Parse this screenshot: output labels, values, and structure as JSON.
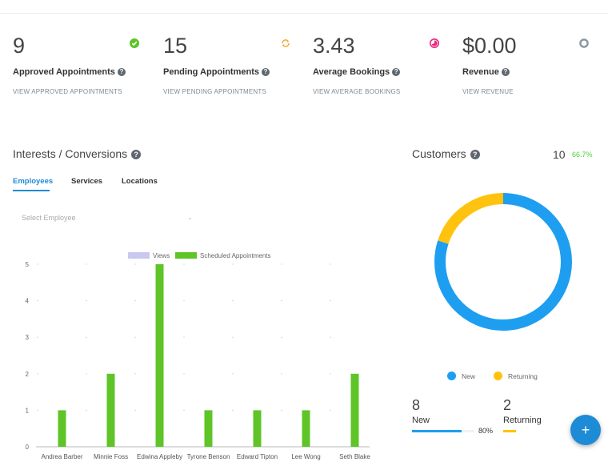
{
  "stats": [
    {
      "value": "9",
      "label": "Approved Appointments",
      "link": "VIEW APPROVED APPOINTMENTS",
      "icon": "check-circle-icon"
    },
    {
      "value": "15",
      "label": "Pending Appointments",
      "link": "VIEW PENDING APPOINTMENTS",
      "icon": "sync-icon"
    },
    {
      "value": "3.43",
      "label": "Average Bookings",
      "link": "VIEW AVERAGE BOOKINGS",
      "icon": "pie-icon"
    },
    {
      "value": "$0.00",
      "label": "Revenue",
      "link": "VIEW REVENUE",
      "icon": "ring-icon"
    }
  ],
  "colors": {
    "green": "#5ec427",
    "blue": "#1e8bd6",
    "donut_blue": "#1e9ef0",
    "donut_yellow": "#ffc30f",
    "views": "#c9c8f0",
    "orange": "#f5a623",
    "pink": "#e9277f",
    "gray": "#8a96a0"
  },
  "interests": {
    "title": "Interests / Conversions",
    "tabs": [
      "Employees",
      "Services",
      "Locations"
    ],
    "select_placeholder": "Select Employee"
  },
  "chart_data": {
    "type": "bar",
    "categories": [
      "Andrea  Barber",
      "Minnie Foss",
      "Edwina Appleby",
      "Tyrone  Benson",
      "Edward Tipton",
      "Lee Wong",
      "Seth Blake"
    ],
    "series": [
      {
        "name": "Views",
        "values": [
          0,
          0,
          0,
          0,
          0,
          0,
          0
        ]
      },
      {
        "name": "Scheduled Appointments",
        "values": [
          1,
          2,
          5,
          1,
          1,
          1,
          2
        ]
      }
    ],
    "yticks": [
      "0",
      "1",
      "2",
      "3",
      "4",
      "5"
    ],
    "ylim": [
      0,
      5
    ],
    "legend": "top"
  },
  "customers": {
    "title": "Customers",
    "count": "10",
    "pct": "66.7%",
    "donut": [
      {
        "name": "New",
        "value": 8
      },
      {
        "name": "Returning",
        "value": 2
      }
    ],
    "legend": [
      "New",
      "Returning"
    ],
    "new_count": "8",
    "new_label": "New",
    "new_pct": "80%",
    "new_fraction": 0.8,
    "ret_count": "2",
    "ret_label": "Returning",
    "ret_fraction": 0.2
  },
  "fab_label": "+"
}
